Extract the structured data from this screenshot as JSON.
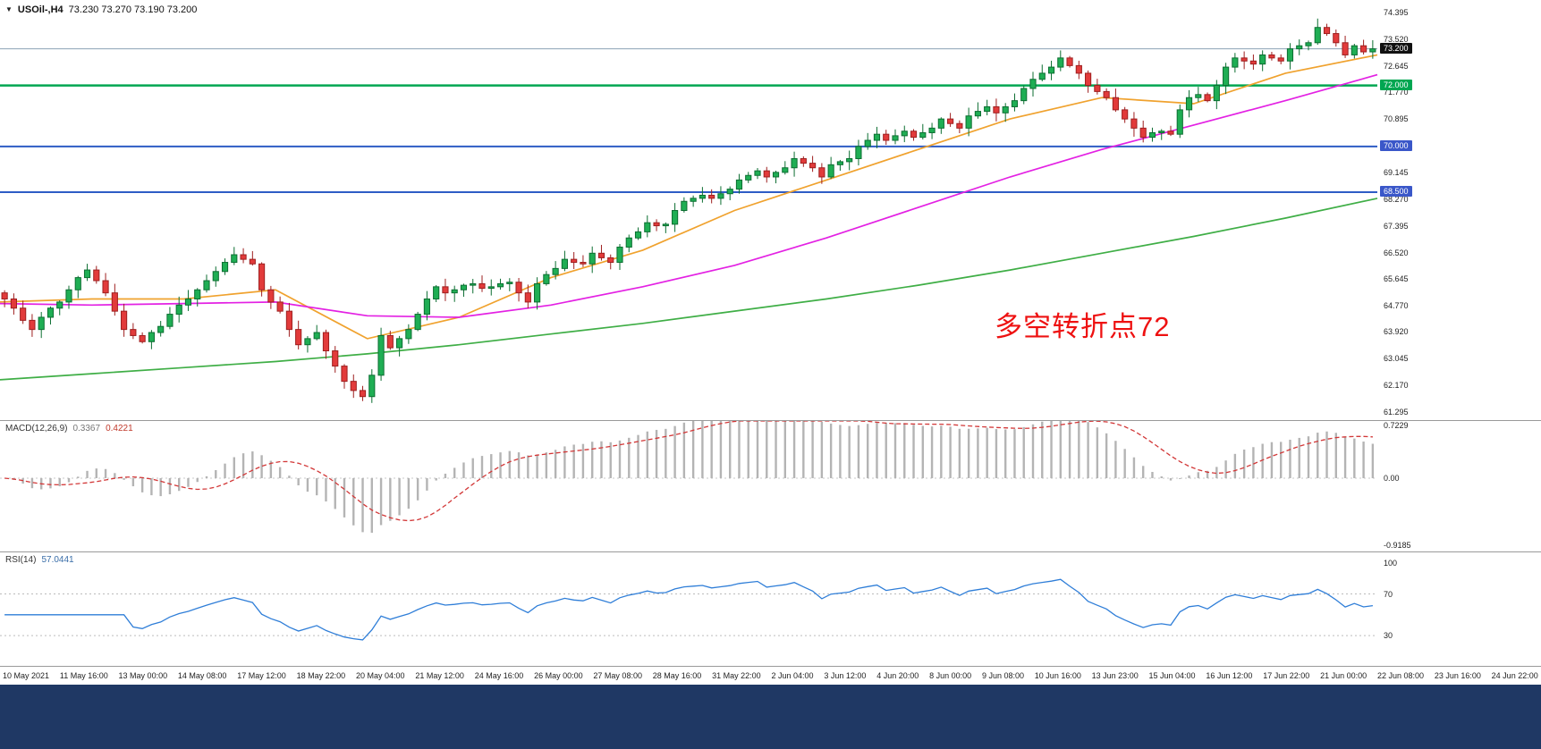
{
  "header": {
    "dropdown_icon": "triangle-down",
    "symbol_title": "USOil-,H4",
    "ohlc": "73.230 73.270 73.190 73.200"
  },
  "colors": {
    "bull": "#1fae54",
    "bull_border": "#0c6e31",
    "bear": "#e23b3b",
    "bear_border": "#9e1f1f",
    "background": "#ffffff",
    "bottom_bar": "#1f3864",
    "axis_text": "#222222"
  },
  "annotation": {
    "text": "多空转折点72",
    "color": "#ee1111"
  },
  "price_axis": {
    "ylim": [
      61.03,
      74.8
    ],
    "labels": [
      74.395,
      73.52,
      72.645,
      71.77,
      70.895,
      69.145,
      68.27,
      67.395,
      66.52,
      65.645,
      64.77,
      63.92,
      63.045,
      62.17,
      61.295
    ],
    "badges": [
      {
        "value": "73.200",
        "price": 73.2,
        "bg": "#111111",
        "name": "current-price-badge"
      },
      {
        "value": "72.000",
        "price": 72.0,
        "bg": "#00a651",
        "name": "green-line-badge"
      },
      {
        "value": "70.000",
        "price": 70.0,
        "bg": "#3a57c9",
        "name": "blue-line-70-badge"
      },
      {
        "value": "68.500",
        "price": 68.5,
        "bg": "#3a57c9",
        "name": "blue-line-68-5-badge"
      }
    ]
  },
  "chart_data": {
    "type": "candlestick",
    "title": "USOil-,H4",
    "ohlc_display": {
      "open": "73.230",
      "high": "73.270",
      "low": "73.190",
      "close": "73.200"
    },
    "ylim": [
      61.03,
      74.8
    ],
    "first_open": 65.2,
    "closes": [
      65.0,
      64.7,
      64.3,
      64.0,
      64.4,
      64.7,
      64.9,
      65.3,
      65.7,
      65.95,
      65.6,
      65.2,
      64.6,
      64.0,
      63.8,
      63.6,
      63.9,
      64.1,
      64.5,
      64.8,
      65.0,
      65.3,
      65.6,
      65.9,
      66.2,
      66.45,
      66.3,
      66.15,
      65.3,
      64.9,
      64.6,
      64.0,
      63.5,
      63.7,
      63.9,
      63.3,
      62.8,
      62.3,
      62.0,
      61.8,
      62.5,
      63.8,
      63.4,
      63.7,
      64.0,
      64.5,
      65.0,
      65.4,
      65.2,
      65.3,
      65.45,
      65.5,
      65.35,
      65.4,
      65.5,
      65.55,
      65.2,
      64.9,
      65.5,
      65.8,
      66.0,
      66.3,
      66.2,
      66.15,
      66.5,
      66.35,
      66.2,
      66.7,
      67.0,
      67.2,
      67.5,
      67.4,
      67.45,
      67.9,
      68.2,
      68.3,
      68.4,
      68.3,
      68.45,
      68.6,
      68.9,
      69.05,
      69.2,
      69.0,
      69.15,
      69.3,
      69.6,
      69.45,
      69.3,
      69.0,
      69.4,
      69.5,
      69.6,
      70.0,
      70.2,
      70.4,
      70.2,
      70.35,
      70.5,
      70.3,
      70.45,
      70.6,
      70.9,
      70.75,
      70.6,
      71.0,
      71.15,
      71.3,
      71.1,
      71.3,
      71.5,
      71.9,
      72.2,
      72.4,
      72.6,
      72.9,
      72.65,
      72.4,
      72.0,
      71.8,
      71.6,
      71.2,
      70.9,
      70.6,
      70.3,
      70.45,
      70.5,
      70.4,
      71.2,
      71.6,
      71.7,
      71.5,
      72.0,
      72.6,
      72.9,
      72.8,
      72.7,
      73.0,
      72.9,
      72.8,
      73.2,
      73.3,
      73.4,
      73.9,
      73.7,
      73.4,
      73.0,
      73.3,
      73.1,
      73.2
    ],
    "hlines": [
      {
        "price": 73.2,
        "color": "#8ba2b5",
        "width": 1,
        "name": "current-price-line"
      },
      {
        "price": 72.0,
        "color": "#00a651",
        "width": 2.5,
        "name": "green-resistance-line-72"
      },
      {
        "price": 70.0,
        "color": "#2e5cc5",
        "width": 2,
        "name": "blue-support-line-70"
      },
      {
        "price": 68.5,
        "color": "#2e5cc5",
        "width": 2,
        "name": "blue-support-line-68-5"
      }
    ],
    "moving_averages": [
      {
        "name": "ma-fast-orange",
        "color": "#f0a22e",
        "values": [
          64.9,
          65.0,
          65.0,
          65.3,
          63.7,
          64.4,
          65.7,
          66.6,
          67.9,
          68.9,
          69.9,
          70.9,
          71.6,
          71.4,
          72.4,
          73.0
        ]
      },
      {
        "name": "ma-mid-magenta",
        "color": "#e321e3",
        "values": [
          64.85,
          64.8,
          64.85,
          64.9,
          64.45,
          64.4,
          64.8,
          65.4,
          66.1,
          67.0,
          68.0,
          69.0,
          69.9,
          70.7,
          71.5,
          72.35
        ]
      },
      {
        "name": "ma-slow-green",
        "color": "#3fae46",
        "values": [
          62.35,
          62.55,
          62.75,
          62.95,
          63.2,
          63.5,
          63.85,
          64.2,
          64.6,
          65.0,
          65.45,
          65.95,
          66.5,
          67.05,
          67.65,
          68.3
        ]
      }
    ]
  },
  "indicators": {
    "macd": {
      "label": "MACD(12,26,9)",
      "value_main": "0.3367",
      "value_signal": "0.4221",
      "params": [
        12,
        26,
        9
      ],
      "ylim": [
        -1.0,
        0.78
      ],
      "axis_values": [
        0.7229,
        0,
        -0.9185
      ],
      "axis_labels": [
        "0.7229",
        "0.00",
        "-0.9185"
      ],
      "histogram_color": "#b4b4b4",
      "signal_color": "#d23737"
    },
    "rsi": {
      "label": "RSI(14)",
      "value": "57.0441",
      "period": 14,
      "ylim": [
        0,
        110
      ],
      "axis_values": [
        100,
        70,
        30
      ],
      "axis_labels": [
        "100",
        "70",
        "30"
      ],
      "levels": [
        70,
        30
      ],
      "line_color": "#2f7ed8"
    }
  },
  "time_axis": {
    "labels": [
      "10 May 2021",
      "11 May 16:00",
      "13 May 00:00",
      "14 May 08:00",
      "17 May 12:00",
      "18 May 22:00",
      "20 May 04:00",
      "21 May 12:00",
      "24 May 16:00",
      "26 May 00:00",
      "27 May 08:00",
      "28 May 16:00",
      "31 May 22:00",
      "2 Jun 04:00",
      "3 Jun 12:00",
      "4 Jun 20:00",
      "8 Jun 00:00",
      "9 Jun 08:00",
      "10 Jun 16:00",
      "13 Jun 23:00",
      "15 Jun 04:00",
      "16 Jun 12:00",
      "17 Jun 22:00",
      "21 Jun 00:00",
      "22 Jun 08:00",
      "23 Jun 16:00",
      "24 Jun 22:00"
    ]
  }
}
